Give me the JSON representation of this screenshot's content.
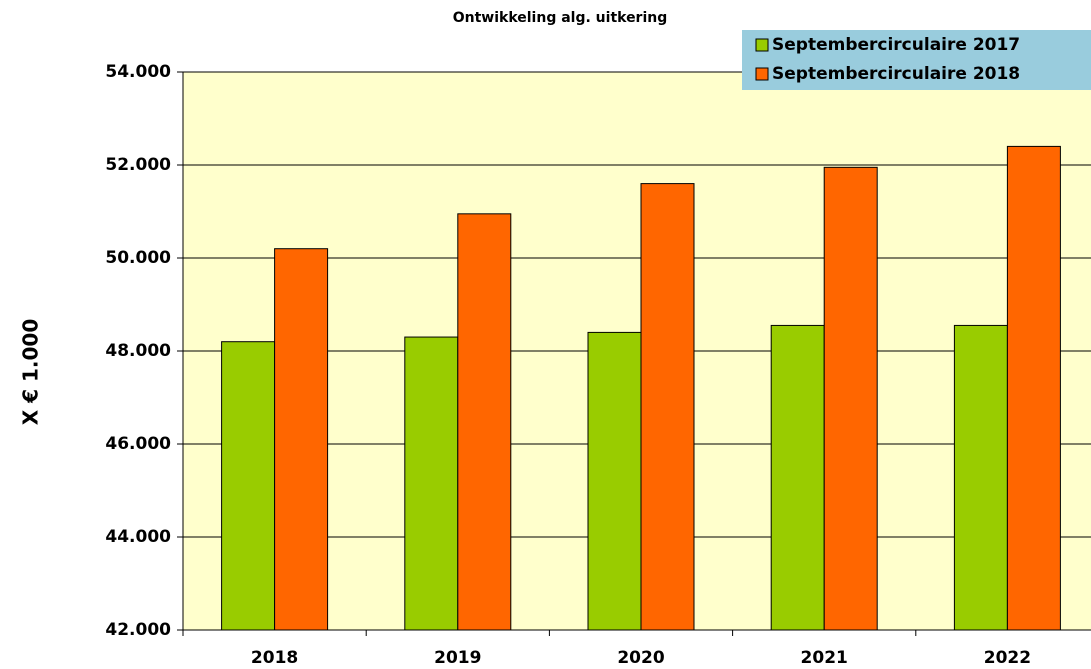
{
  "chart_data": {
    "type": "bar",
    "title": "Ontwikkeling alg. uitkering",
    "y_label": "X € 1.000",
    "categories": [
      "2018",
      "2019",
      "2020",
      "2021",
      "2022"
    ],
    "series": [
      {
        "name": "Septembercirculaire 2017",
        "color": "#99cc00",
        "values": [
          48200,
          48300,
          48400,
          48550,
          48550
        ]
      },
      {
        "name": "Septembercirculaire 2018",
        "color": "#ff6600",
        "values": [
          50200,
          50950,
          51600,
          51950,
          52400
        ]
      }
    ],
    "ylim": [
      42000,
      54000
    ],
    "yticks": [
      {
        "value": 42000,
        "label": "42.000"
      },
      {
        "value": 44000,
        "label": "44.000"
      },
      {
        "value": 46000,
        "label": "46.000"
      },
      {
        "value": 48000,
        "label": "48.000"
      },
      {
        "value": 50000,
        "label": "50.000"
      },
      {
        "value": 52000,
        "label": "52.000"
      },
      {
        "value": 54000,
        "label": "54.000"
      }
    ],
    "grid": true,
    "legend": "top-right",
    "plot_background": "#ffffcc",
    "legend_background": "#99ccdd"
  }
}
